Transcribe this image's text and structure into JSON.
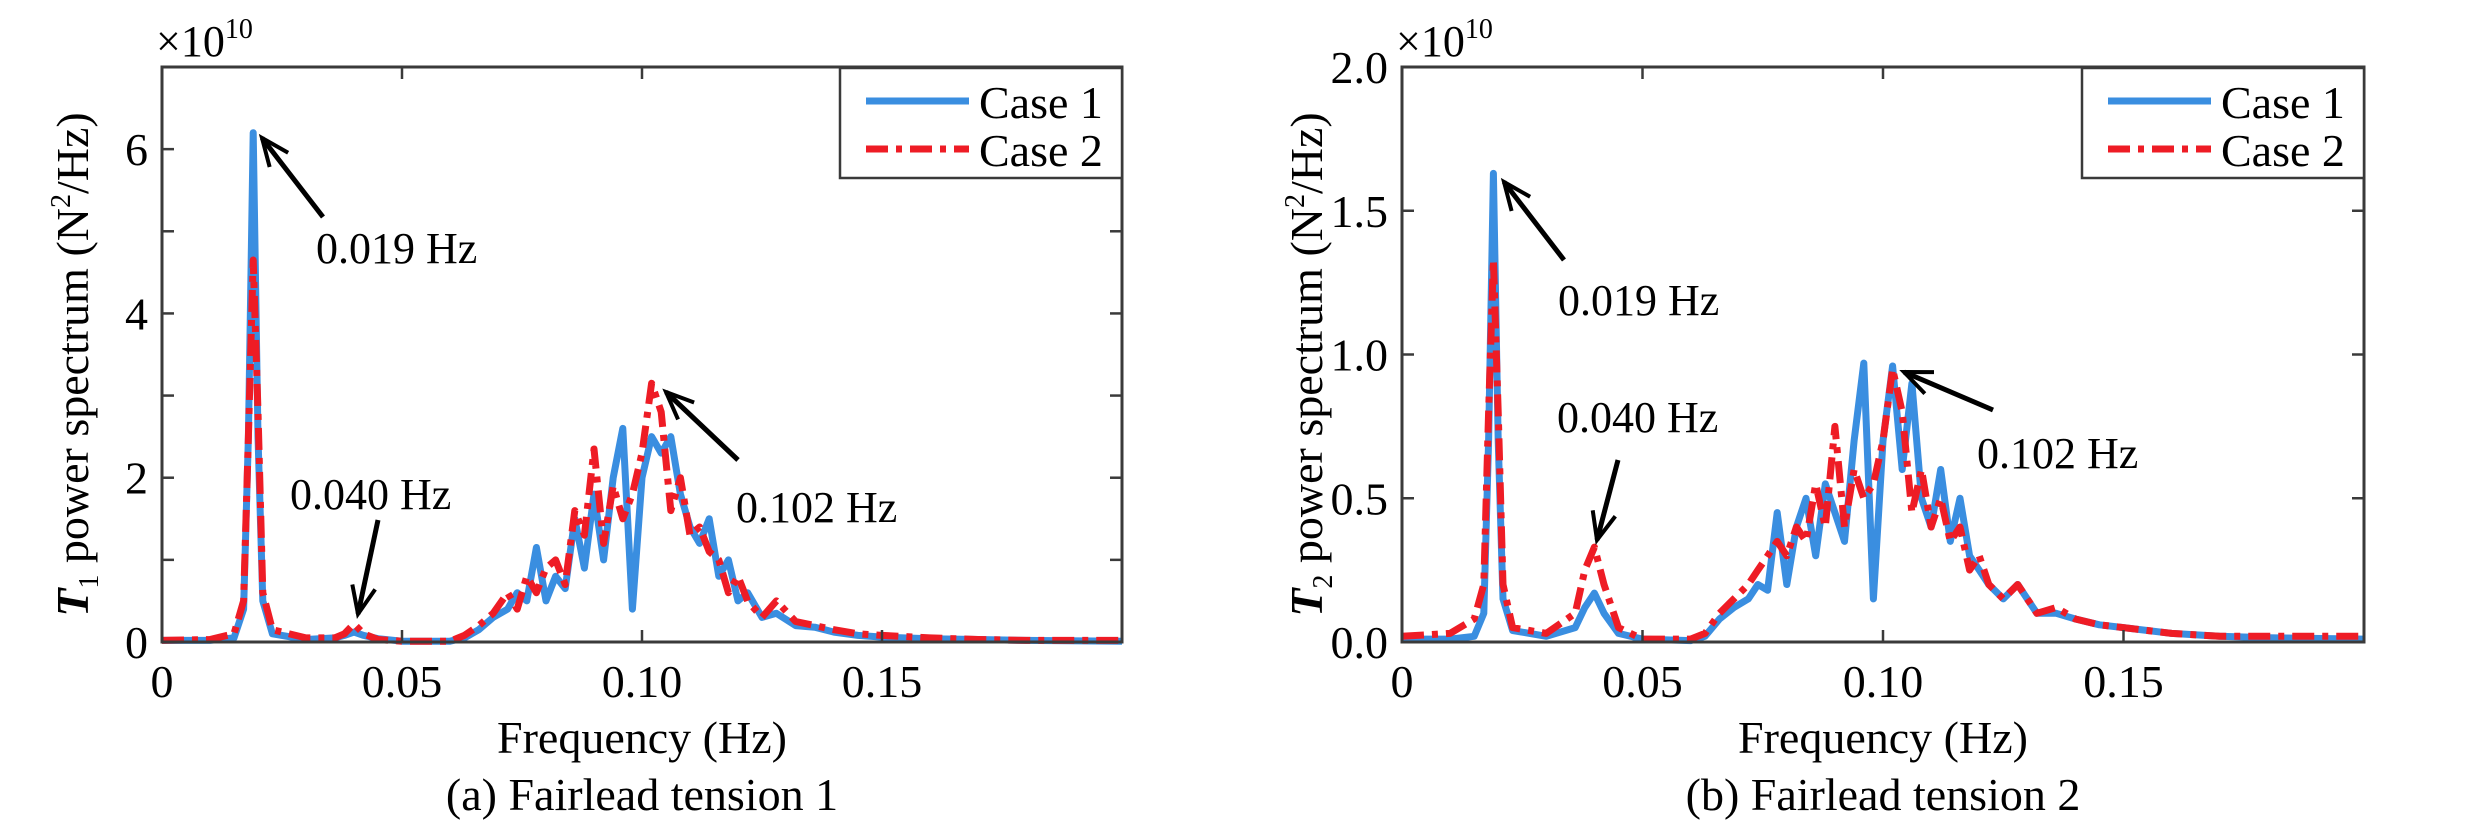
{
  "chart_data": [
    {
      "type": "line",
      "panel_caption": "(a) Fairlead tension 1",
      "xlabel": "Frequency (Hz)",
      "ylabel": {
        "var": "T",
        "sub": "1",
        "text": " power spectrum (N",
        "sup": "2",
        "tail": "/Hz)"
      },
      "y_scale": {
        "base": "×10",
        "exp": "10"
      },
      "xlim": [
        0,
        0.2
      ],
      "ylim": [
        0,
        7
      ],
      "xticks": [
        0,
        0.05,
        0.1,
        0.15
      ],
      "xtick_labels": [
        "0",
        "0.05",
        "0.10",
        "0.15"
      ],
      "yticks": [
        0,
        1,
        2,
        3,
        4,
        5,
        6
      ],
      "ytick_labels": [
        "0",
        "",
        "2",
        "",
        "4",
        "",
        "6"
      ],
      "grid": false,
      "legend": {
        "position": "top-right",
        "entries": [
          "Case 1",
          "Case 2"
        ]
      },
      "annotations": [
        {
          "text": "0.019 Hz",
          "x": 0.019
        },
        {
          "text": "0.040 Hz",
          "x": 0.04
        },
        {
          "text": "0.102 Hz",
          "x": 0.102
        }
      ],
      "x": [
        0,
        0.01,
        0.015,
        0.017,
        0.018,
        0.019,
        0.02,
        0.021,
        0.023,
        0.03,
        0.036,
        0.038,
        0.04,
        0.042,
        0.045,
        0.05,
        0.06,
        0.063,
        0.066,
        0.069,
        0.072,
        0.074,
        0.076,
        0.078,
        0.08,
        0.082,
        0.084,
        0.086,
        0.088,
        0.09,
        0.092,
        0.094,
        0.096,
        0.098,
        0.1,
        0.102,
        0.104,
        0.106,
        0.108,
        0.11,
        0.112,
        0.114,
        0.116,
        0.118,
        0.12,
        0.122,
        0.125,
        0.128,
        0.132,
        0.136,
        0.14,
        0.145,
        0.15,
        0.16,
        0.17,
        0.18,
        0.2
      ],
      "series": [
        {
          "name": "Case 1",
          "color": "#3a8ee0",
          "style": "solid",
          "values": [
            0.02,
            0.02,
            0.05,
            0.4,
            2.5,
            6.2,
            2.5,
            0.5,
            0.1,
            0.03,
            0.05,
            0.08,
            0.12,
            0.08,
            0.04,
            0.01,
            0.01,
            0.05,
            0.15,
            0.3,
            0.4,
            0.6,
            0.5,
            1.15,
            0.5,
            0.8,
            0.65,
            1.5,
            0.9,
            1.8,
            1.0,
            2.0,
            2.6,
            0.4,
            2.0,
            2.5,
            2.3,
            2.5,
            1.8,
            1.4,
            1.2,
            1.5,
            0.8,
            1.0,
            0.5,
            0.6,
            0.3,
            0.35,
            0.2,
            0.18,
            0.12,
            0.08,
            0.06,
            0.04,
            0.03,
            0.02,
            0.01
          ]
        },
        {
          "name": "Case 2",
          "color": "#ee1c25",
          "style": "dash-dot",
          "values": [
            0.02,
            0.03,
            0.1,
            0.5,
            2.5,
            4.65,
            2.8,
            0.6,
            0.15,
            0.05,
            0.05,
            0.1,
            0.22,
            0.1,
            0.03,
            0.01,
            0.01,
            0.08,
            0.2,
            0.35,
            0.6,
            0.4,
            0.8,
            0.6,
            0.9,
            1.0,
            0.7,
            1.6,
            1.3,
            2.35,
            1.2,
            1.9,
            1.5,
            1.8,
            2.3,
            3.15,
            2.8,
            1.6,
            2.0,
            1.3,
            1.4,
            1.1,
            1.0,
            0.6,
            0.8,
            0.5,
            0.3,
            0.5,
            0.25,
            0.2,
            0.15,
            0.1,
            0.08,
            0.05,
            0.03,
            0.02,
            0.02
          ]
        }
      ]
    },
    {
      "type": "line",
      "panel_caption": "(b) Fairlead tension 2",
      "xlabel": "Frequency (Hz)",
      "ylabel": {
        "var": "T",
        "sub": "2",
        "text": " power spectrum (N",
        "sup": "2",
        "tail": "/Hz)"
      },
      "y_scale": {
        "base": "×10",
        "exp": "10"
      },
      "xlim": [
        0,
        0.2
      ],
      "ylim": [
        0,
        2.0
      ],
      "xticks": [
        0,
        0.05,
        0.1,
        0.15
      ],
      "xtick_labels": [
        "0",
        "0.05",
        "0.10",
        "0.15"
      ],
      "yticks": [
        0,
        0.5,
        1.0,
        1.5,
        2.0
      ],
      "ytick_labels": [
        "0.0",
        "0.5",
        "1.0",
        "1.5",
        "2.0"
      ],
      "grid": false,
      "legend": {
        "position": "top-right",
        "entries": [
          "Case 1",
          "Case 2"
        ]
      },
      "annotations": [
        {
          "text": "0.019 Hz",
          "x": 0.019
        },
        {
          "text": "0.040 Hz",
          "x": 0.04
        },
        {
          "text": "0.102 Hz",
          "x": 0.102
        }
      ],
      "x": [
        0,
        0.01,
        0.015,
        0.017,
        0.018,
        0.019,
        0.02,
        0.021,
        0.023,
        0.03,
        0.036,
        0.038,
        0.04,
        0.042,
        0.045,
        0.05,
        0.06,
        0.063,
        0.066,
        0.069,
        0.072,
        0.074,
        0.076,
        0.078,
        0.08,
        0.082,
        0.084,
        0.086,
        0.088,
        0.09,
        0.092,
        0.094,
        0.096,
        0.098,
        0.1,
        0.102,
        0.104,
        0.106,
        0.108,
        0.11,
        0.112,
        0.114,
        0.116,
        0.118,
        0.12,
        0.122,
        0.125,
        0.128,
        0.132,
        0.136,
        0.14,
        0.145,
        0.15,
        0.16,
        0.17,
        0.18,
        0.2
      ],
      "series": [
        {
          "name": "Case 1",
          "color": "#3a8ee0",
          "style": "solid",
          "values": [
            0.01,
            0.01,
            0.02,
            0.1,
            0.7,
            1.63,
            0.7,
            0.15,
            0.04,
            0.02,
            0.05,
            0.12,
            0.17,
            0.1,
            0.03,
            0.01,
            0.005,
            0.02,
            0.08,
            0.12,
            0.15,
            0.2,
            0.18,
            0.45,
            0.2,
            0.4,
            0.5,
            0.3,
            0.55,
            0.45,
            0.35,
            0.7,
            0.97,
            0.15,
            0.7,
            0.96,
            0.6,
            0.9,
            0.5,
            0.4,
            0.6,
            0.35,
            0.5,
            0.3,
            0.25,
            0.2,
            0.15,
            0.2,
            0.1,
            0.1,
            0.08,
            0.06,
            0.05,
            0.03,
            0.02,
            0.015,
            0.01
          ]
        },
        {
          "name": "Case 2",
          "color": "#ee1c25",
          "style": "dash-dot",
          "values": [
            0.02,
            0.03,
            0.08,
            0.2,
            0.8,
            1.33,
            0.8,
            0.2,
            0.05,
            0.03,
            0.1,
            0.25,
            0.33,
            0.2,
            0.05,
            0.01,
            0.01,
            0.03,
            0.1,
            0.15,
            0.2,
            0.25,
            0.3,
            0.35,
            0.3,
            0.4,
            0.35,
            0.55,
            0.4,
            0.75,
            0.4,
            0.6,
            0.5,
            0.55,
            0.7,
            0.95,
            0.8,
            0.45,
            0.6,
            0.4,
            0.5,
            0.35,
            0.4,
            0.25,
            0.3,
            0.2,
            0.15,
            0.2,
            0.1,
            0.12,
            0.08,
            0.06,
            0.05,
            0.03,
            0.02,
            0.02,
            0.02
          ]
        }
      ]
    }
  ]
}
